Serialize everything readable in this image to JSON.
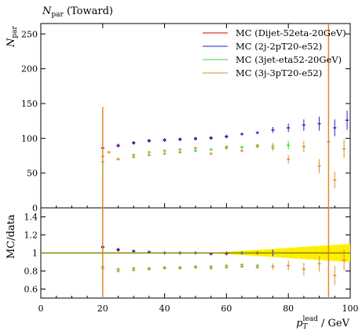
{
  "title": {
    "main": "N",
    "sub": "par",
    "rest": " (Toward)"
  },
  "upper_ylabel": {
    "main": "N",
    "sub": "par"
  },
  "lower_ylabel": "MC/data",
  "xlabel": {
    "p": "p",
    "sub": "T",
    "sup": "lead",
    "unit": " / GeV"
  },
  "colors": {
    "data": "#000000",
    "mc1": "#cc0000",
    "mc2": "#2222cc",
    "mc3": "#33dd33",
    "mc4": "#e08a2a",
    "band": "#ffee00"
  },
  "chart_data": [
    {
      "type": "scatter",
      "panel": "main",
      "title": "N_par (Toward)",
      "xlim": [
        0,
        100
      ],
      "ylim": [
        0,
        265
      ],
      "x_ticks": [
        0,
        20,
        40,
        60,
        80,
        100
      ],
      "y_ticks": [
        "0",
        "50",
        "100",
        "150",
        "200",
        "250"
      ],
      "y_tick_values": [
        0,
        50,
        100,
        150,
        200,
        250
      ],
      "legend": [
        {
          "label": "MC (Dijet-52eta-20GeV)",
          "color": "#cc0000"
        },
        {
          "label": "MC (2j-2pT20-e52)",
          "color": "#2222cc"
        },
        {
          "label": "MC (3jet-eta52-20GeV)",
          "color": "#33dd33"
        },
        {
          "label": "MC (3j-3pT20-e52)",
          "color": "#e08a2a"
        }
      ],
      "series": [
        {
          "name": "MC (Dijet-52eta-20GeV)",
          "color": "#cc0000",
          "x": [
            20,
            25,
            30,
            35,
            40,
            45,
            50,
            55,
            60
          ],
          "y": [
            86,
            90,
            94,
            97,
            98,
            99,
            100,
            101,
            102
          ]
        },
        {
          "name": "MC (2j-2pT20-e52)",
          "color": "#2222cc",
          "x": [
            20,
            25,
            30,
            35,
            40,
            45,
            50,
            55,
            60,
            65,
            70,
            75,
            80,
            85,
            90,
            95,
            99
          ],
          "y": [
            86,
            89,
            93,
            96,
            97,
            98,
            99,
            100,
            103,
            106,
            108,
            112,
            115,
            119,
            121,
            115,
            126
          ]
        },
        {
          "name": "MC (3jet-eta52-20GeV)",
          "color": "#33dd33",
          "x": [
            20,
            25,
            30,
            35,
            40,
            45,
            50,
            55,
            60,
            65,
            70,
            75,
            80
          ],
          "y": [
            66,
            70,
            73,
            76,
            78,
            80,
            82,
            84,
            86,
            87,
            88,
            89,
            90
          ]
        },
        {
          "name": "MC (3j-3pT20-e52)",
          "color": "#e08a2a",
          "x": [
            20,
            22,
            25,
            30,
            35,
            40,
            45,
            50,
            55,
            60,
            65,
            70,
            75,
            80,
            85,
            90,
            93,
            95,
            98
          ],
          "y": [
            74,
            80,
            70,
            76,
            80,
            82,
            84,
            86,
            78,
            88,
            82,
            90,
            86,
            70,
            88,
            60,
            95,
            40,
            85
          ]
        }
      ]
    },
    {
      "type": "scatter",
      "panel": "ratio",
      "xlabel": "p_T^lead / GeV",
      "ylabel": "MC/data",
      "xlim": [
        0,
        100
      ],
      "ylim": [
        0.5,
        1.5
      ],
      "y_ticks": [
        "0.6",
        "0.8",
        "1",
        "1.2",
        "1.4"
      ],
      "y_tick_values": [
        0.6,
        0.8,
        1.0,
        1.2,
        1.4
      ],
      "series": [
        {
          "name": "MC (Dijet-52eta-20GeV)",
          "color": "#cc0000",
          "x": [
            20,
            25,
            30,
            35,
            40,
            45,
            50,
            55,
            60
          ],
          "y": [
            1.06,
            1.03,
            1.02,
            1.01,
            1.0,
            1.0,
            1.0,
            0.99,
            0.99
          ]
        },
        {
          "name": "MC (2j-2pT20-e52)",
          "color": "#2222cc",
          "x": [
            20,
            25,
            30,
            35,
            40,
            45,
            50,
            55,
            60,
            65,
            70,
            75
          ],
          "y": [
            1.07,
            1.04,
            1.02,
            1.01,
            1.0,
            1.0,
            1.0,
            0.99,
            1.0,
            1.0,
            1.0,
            1.0
          ]
        },
        {
          "name": "MC (3jet-eta52-20GeV)",
          "color": "#33dd33",
          "x": [
            20,
            25,
            30,
            35,
            40,
            45,
            50,
            55,
            60,
            65,
            70
          ],
          "y": [
            0.83,
            0.8,
            0.81,
            0.82,
            0.83,
            0.84,
            0.84,
            0.85,
            0.84,
            0.85,
            0.86
          ]
        },
        {
          "name": "MC (3j-3pT20-e52)",
          "color": "#e08a2a",
          "x": [
            20,
            25,
            30,
            35,
            40,
            45,
            50,
            55,
            60,
            65,
            70,
            75,
            80,
            85,
            90,
            95,
            98
          ],
          "y": [
            0.85,
            0.82,
            0.83,
            0.83,
            0.84,
            0.83,
            0.85,
            0.83,
            0.86,
            0.87,
            0.84,
            0.85,
            0.86,
            0.82,
            0.88,
            0.75,
            0.92
          ]
        }
      ]
    }
  ]
}
